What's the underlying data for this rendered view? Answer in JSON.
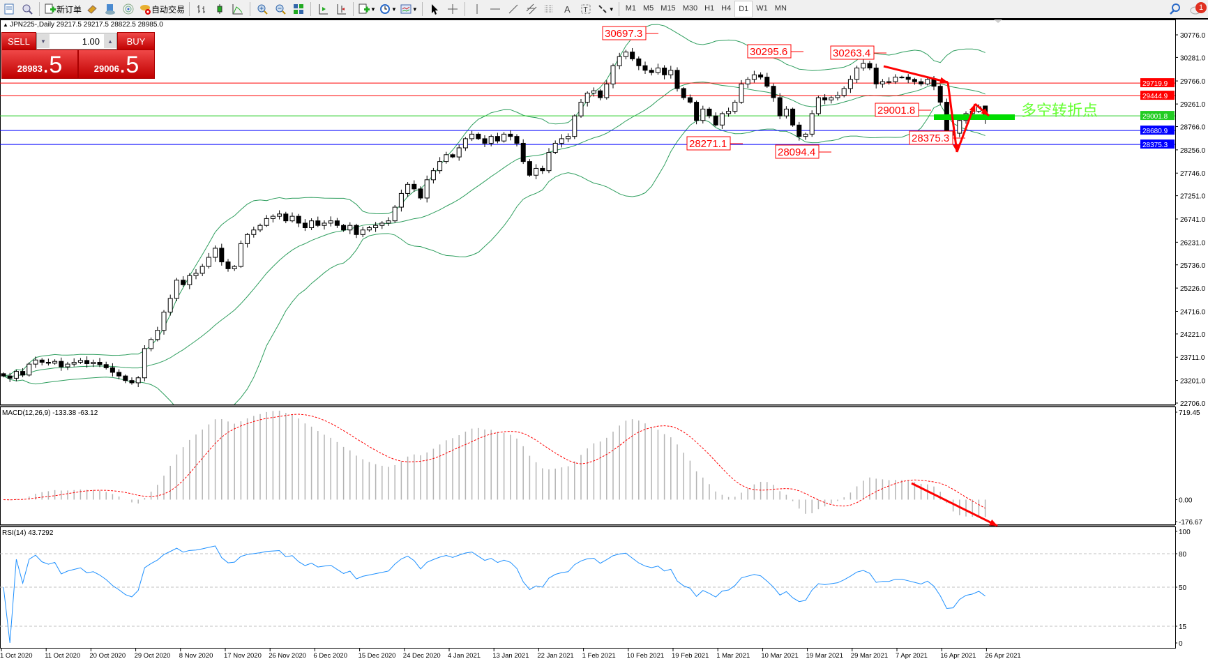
{
  "toolbar": {
    "new_order": "新订单",
    "auto_trading": "自动交易",
    "timeframes": [
      "M1",
      "M5",
      "M15",
      "M30",
      "H1",
      "H4",
      "D1",
      "W1",
      "MN"
    ],
    "active_timeframe": "D1",
    "notification_count": "1"
  },
  "chart_info": "JPN225-,Daily  29217.5 29217.5 28822.5 28985.0",
  "trade_panel": {
    "sell_label": "SELL",
    "buy_label": "BUY",
    "lot": "1.00",
    "sell_price_main": "28983",
    "sell_price_frac": ".5",
    "buy_price_main": "29006",
    "buy_price_frac": ".5"
  },
  "colors": {
    "up_fill": "#ffffff",
    "down_fill": "#000000",
    "bands": "#2e9e5e",
    "macd_hist": "#b4b4b4",
    "macd_signal": "#ff0000",
    "rsi": "#1e90ff",
    "annotation": "#ff0000",
    "pivot": "#00dd00"
  },
  "chart_data": {
    "type": "candlestick",
    "symbol": "JPN225-",
    "timeframe": "Daily",
    "close": [
      23300,
      23250,
      23400,
      23320,
      23560,
      23650,
      23600,
      23580,
      23620,
      23500,
      23560,
      23600,
      23640,
      23570,
      23600,
      23550,
      23480,
      23380,
      23300,
      23200,
      23150,
      23260,
      23900,
      24100,
      24300,
      24700,
      25000,
      25400,
      25300,
      25500,
      25550,
      25700,
      25900,
      26100,
      25800,
      25650,
      25700,
      26200,
      26400,
      26500,
      26600,
      26750,
      26800,
      26850,
      26700,
      26800,
      26650,
      26550,
      26700,
      26600,
      26650,
      26700,
      26600,
      26500,
      26600,
      26400,
      26500,
      26550,
      26600,
      26650,
      26700,
      27000,
      27300,
      27500,
      27400,
      27200,
      27600,
      27800,
      28000,
      28150,
      28100,
      28300,
      28500,
      28600,
      28500,
      28400,
      28550,
      28450,
      28600,
      28550,
      28400,
      28000,
      27700,
      27850,
      27800,
      28200,
      28400,
      28500,
      28550,
      29000,
      29300,
      29500,
      29550,
      29400,
      29700,
      30100,
      30300,
      30400,
      30250,
      30100,
      30000,
      29950,
      30050,
      29900,
      30000,
      29600,
      29400,
      29300,
      28900,
      29150,
      29000,
      28800,
      29050,
      29100,
      29300,
      29700,
      29800,
      29900,
      29850,
      29650,
      29400,
      29000,
      29150,
      28800,
      28550,
      28600,
      29050,
      29400,
      29350,
      29400,
      29450,
      29600,
      29800,
      30050,
      30150,
      30050,
      29700,
      29750,
      29750,
      29850,
      29850,
      29800,
      29750,
      29700,
      29800,
      29650,
      29300,
      28600,
      28620,
      28900,
      29050,
      29100,
      29200,
      28985
    ],
    "last_bar": {
      "open": 29217.5,
      "high": 29217.5,
      "low": 28822.5,
      "close": 28985.0
    },
    "price_ticks": [
      "30776.0",
      "30281.0",
      "29766.0",
      "29261.0",
      "28766.0",
      "28256.0",
      "27746.0",
      "27251.0",
      "26741.0",
      "26231.0",
      "25736.0",
      "25226.0",
      "24716.0",
      "24221.0",
      "23711.0",
      "23201.0",
      "22706.0"
    ],
    "date_labels": [
      "1 Oct 2020",
      "11 Oct 2020",
      "20 Oct 2020",
      "29 Oct 2020",
      "8 Nov 2020",
      "17 Nov 2020",
      "26 Nov 2020",
      "6 Dec 2020",
      "15 Dec 2020",
      "24 Dec 2020",
      "4 Jan 2021",
      "13 Jan 2021",
      "22 Jan 2021",
      "1 Feb 2021",
      "10 Feb 2021",
      "19 Feb 2021",
      "1 Mar 2021",
      "10 Mar 2021",
      "19 Mar 2021",
      "29 Mar 2021",
      "7 Apr 2021",
      "16 Apr 2021",
      "26 Apr 2021"
    ],
    "indicators": {
      "bollinger": {
        "period": 20,
        "deviation": 2
      },
      "macd": {
        "label": "MACD(12,26,9) -133.38 -63.12",
        "ticks": [
          "719.45",
          "0.00",
          "-176.67"
        ]
      },
      "rsi": {
        "label": "RSI(14) 43.7292",
        "levels": [
          "100",
          "80",
          "50",
          "15",
          "0"
        ]
      }
    },
    "horizontal_lines": [
      {
        "price": "29719.9",
        "color": "#ff0000"
      },
      {
        "price": "29444.9",
        "color": "#ff0000"
      },
      {
        "price": "29001.8",
        "color": "#22cc22"
      },
      {
        "price": "28680.9",
        "color": "#0000ff"
      },
      {
        "price": "28375.3",
        "color": "#0000ff"
      }
    ],
    "price_labels": [
      "30697.3",
      "30295.6",
      "30263.4",
      "28271.1",
      "28094.4",
      "29001.8",
      "28375.3"
    ],
    "annotation_text": "多空转折点"
  }
}
